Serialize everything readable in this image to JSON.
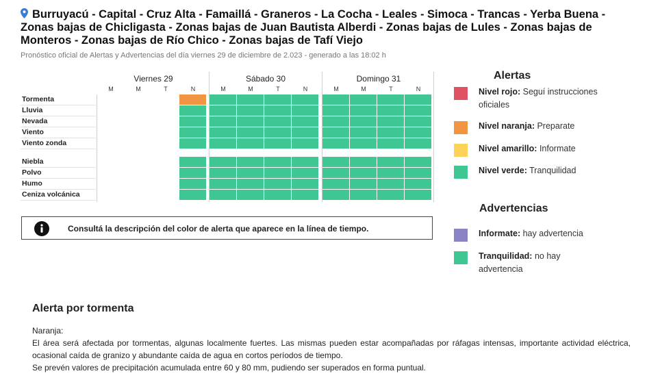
{
  "header": {
    "title": "Burruyacú - Capital - Cruz Alta - Famaillá - Graneros - La Cocha - Leales - Simoca - Trancas - Yerba Buena - Zonas bajas de Chicligasta - Zonas bajas de Juan Bautista Alberdi - Zonas bajas de Lules - Zonas bajas de Monteros - Zonas bajas de Río Chico - Zonas bajas de Tafí Viejo",
    "subtitle": "Pronóstico oficial de Alertas y Advertencias del día viernes 29 de diciembre de 2.023 - generado a las 18:02 h",
    "icon": "location-pin-icon"
  },
  "timeline": {
    "days": [
      {
        "name": "Viernes 29",
        "periods": [
          "M",
          "M",
          "T",
          "N"
        ]
      },
      {
        "name": "Sábado 30",
        "periods": [
          "M",
          "M",
          "T",
          "N"
        ]
      },
      {
        "name": "Domingo 31",
        "periods": [
          "M",
          "M",
          "T",
          "N"
        ]
      }
    ],
    "rows": [
      {
        "label": "Tormenta",
        "cells": [
          "none",
          "none",
          "none",
          "naranja",
          "verde",
          "verde",
          "verde",
          "verde",
          "verde",
          "verde",
          "verde",
          "verde"
        ]
      },
      {
        "label": "Lluvia",
        "cells": [
          "none",
          "none",
          "none",
          "verde",
          "verde",
          "verde",
          "verde",
          "verde",
          "verde",
          "verde",
          "verde",
          "verde"
        ]
      },
      {
        "label": "Nevada",
        "cells": [
          "none",
          "none",
          "none",
          "verde",
          "verde",
          "verde",
          "verde",
          "verde",
          "verde",
          "verde",
          "verde",
          "verde"
        ]
      },
      {
        "label": "Viento",
        "cells": [
          "none",
          "none",
          "none",
          "verde",
          "verde",
          "verde",
          "verde",
          "verde",
          "verde",
          "verde",
          "verde",
          "verde"
        ]
      },
      {
        "label": "Viento zonda",
        "cells": [
          "none",
          "none",
          "none",
          "verde",
          "verde",
          "verde",
          "verde",
          "verde",
          "verde",
          "verde",
          "verde",
          "verde"
        ]
      },
      {
        "label": "Niebla",
        "cells": [
          "none",
          "none",
          "none",
          "verde",
          "verde",
          "verde",
          "verde",
          "verde",
          "verde",
          "verde",
          "verde",
          "verde"
        ]
      },
      {
        "label": "Polvo",
        "cells": [
          "none",
          "none",
          "none",
          "verde",
          "verde",
          "verde",
          "verde",
          "verde",
          "verde",
          "verde",
          "verde",
          "verde"
        ]
      },
      {
        "label": "Humo",
        "cells": [
          "none",
          "none",
          "none",
          "verde",
          "verde",
          "verde",
          "verde",
          "verde",
          "verde",
          "verde",
          "verde",
          "verde"
        ]
      },
      {
        "label": "Ceniza volcánica",
        "cells": [
          "none",
          "none",
          "none",
          "verde",
          "verde",
          "verde",
          "verde",
          "verde",
          "verde",
          "verde",
          "verde",
          "verde"
        ]
      }
    ]
  },
  "notice": {
    "icon": "info-icon",
    "text": "Consultá la descripción del color de alerta que aparece en la línea de tiempo."
  },
  "legend": {
    "alertas_title": "Alertas",
    "alertas": [
      {
        "label": "Nivel rojo:",
        "desc": "Seguí instrucciones oficiales",
        "color": "#e05263"
      },
      {
        "label": "Nivel naranja:",
        "desc": "Preparate",
        "color": "#f29543"
      },
      {
        "label": "Nivel amarillo:",
        "desc": "Informate",
        "color": "#fcd258"
      },
      {
        "label": "Nivel verde:",
        "desc": "Tranquilidad",
        "color": "#3ec793"
      }
    ],
    "advertencias_title": "Advertencias",
    "advertencias": [
      {
        "label": "Informate:",
        "desc": "hay advertencia",
        "color": "#8a84c6"
      },
      {
        "label": "Tranquilidad:",
        "desc": "no hay advertencia",
        "color": "#3ec793"
      }
    ]
  },
  "alert_detail": {
    "title": "Alerta por tormenta",
    "level": "Naranja:",
    "paragraph1": "El área será afectada por tormentas, algunas localmente fuertes. Las mismas pueden estar acompañadas por ráfagas intensas, importante actividad eléctrica, ocasional caída de granizo y abundante caída de agua en cortos períodos de tiempo.",
    "paragraph2": "Se prevén valores de precipitación acumulada entre 60 y 80 mm, pudiendo ser superados en forma puntual."
  },
  "colors": {
    "verde": "#3ec793",
    "naranja": "#f29543"
  }
}
